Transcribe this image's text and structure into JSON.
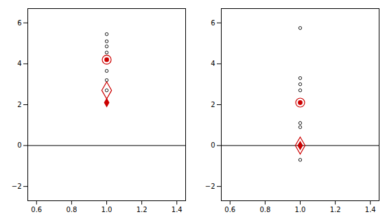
{
  "chart_data": [
    {
      "type": "scatter",
      "xlim": [
        0.55,
        1.45
      ],
      "xticks": [
        0.6,
        0.8,
        {
          "value": 1.0,
          "label": "1.0"
        },
        1.2,
        1.4
      ],
      "ylim": [
        -2.7,
        6.7
      ],
      "yticks": [
        -2,
        0,
        2,
        4,
        6
      ],
      "grid": false,
      "series": [
        {
          "type": "hline",
          "color": "#000000",
          "values": [
            0
          ]
        },
        {
          "marker": "open_circle",
          "color": "#000000",
          "x": [
            1.0,
            1.0,
            1.0,
            1.0,
            1.0,
            1.0
          ],
          "values": [
            5.45,
            5.1,
            4.85,
            4.55,
            3.65,
            3.2
          ]
        },
        {
          "marker": "ring",
          "color": "#cc0000",
          "x": [
            1.0
          ],
          "values": [
            4.2
          ]
        },
        {
          "marker": "open_circle",
          "color": "#000000",
          "x": [
            1.0
          ],
          "values": [
            4.2
          ]
        },
        {
          "marker": "dot",
          "color": "#cc0000",
          "x": [
            1.0
          ],
          "values": [
            4.2
          ]
        },
        {
          "marker": "open_diamond",
          "color": "#cc0000",
          "x": [
            1.0
          ],
          "values": [
            2.7
          ]
        },
        {
          "marker": "open_circle",
          "color": "#000000",
          "x": [
            1.0
          ],
          "values": [
            2.7
          ]
        },
        {
          "marker": "diamond",
          "color": "#cc0000",
          "x": [
            1.0
          ],
          "values": [
            2.1
          ]
        }
      ]
    },
    {
      "type": "scatter",
      "xlim": [
        0.55,
        1.45
      ],
      "xticks": [
        0.6,
        0.8,
        {
          "value": 1.0,
          "label": "1.0"
        },
        1.2,
        1.4
      ],
      "ylim": [
        -2.7,
        6.7
      ],
      "yticks": [
        -2,
        0,
        2,
        4,
        6
      ],
      "grid": false,
      "series": [
        {
          "type": "hline",
          "color": "#000000",
          "values": [
            0
          ]
        },
        {
          "marker": "open_circle",
          "color": "#000000",
          "x": [
            1.0,
            1.0,
            1.0,
            1.0,
            1.0,
            1.0,
            1.0,
            1.0,
            1.0
          ],
          "values": [
            5.75,
            3.3,
            3.0,
            2.7,
            1.1,
            0.9,
            0.05,
            -0.05,
            -0.7
          ]
        },
        {
          "marker": "ring",
          "color": "#cc0000",
          "x": [
            1.0
          ],
          "values": [
            2.1
          ]
        },
        {
          "marker": "open_circle",
          "color": "#000000",
          "x": [
            1.0
          ],
          "values": [
            2.1
          ]
        },
        {
          "marker": "dot",
          "color": "#cc0000",
          "x": [
            1.0
          ],
          "values": [
            2.1
          ]
        },
        {
          "marker": "open_diamond",
          "color": "#cc0000",
          "x": [
            1.0
          ],
          "values": [
            0.0
          ]
        },
        {
          "marker": "open_circle",
          "color": "#000000",
          "x": [
            1.0
          ],
          "values": [
            0.0
          ]
        },
        {
          "marker": "diamond",
          "color": "#cc0000",
          "x": [
            1.0
          ],
          "values": [
            0.0
          ]
        }
      ]
    }
  ]
}
